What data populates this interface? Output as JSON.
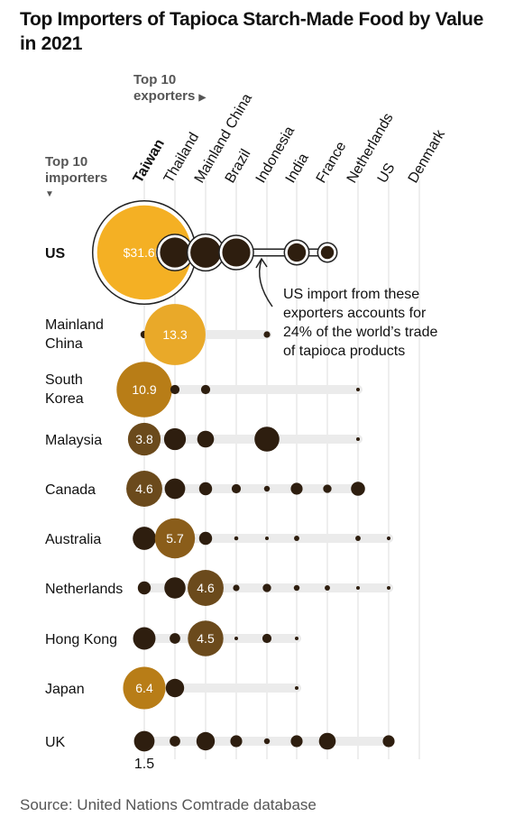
{
  "header": {
    "title": "Top Importers of Tapioca Starch-Made Food by Value in 2021",
    "exporters_line1": "Top 10",
    "exporters_line2": "exporters",
    "importers_line1": "Top 10",
    "importers_line2": "importers"
  },
  "annotation": {
    "lines": [
      "US import from these",
      "exporters accounts for",
      "24% of the world’s trade",
      "of tapioca products"
    ]
  },
  "source": "Source: United Nations Comtrade database",
  "colors": {
    "dark": "#2e1e0f",
    "gold": "#f4b024",
    "light_gold": "#e9a929",
    "bronze": "#b87d17",
    "brown": "#6b4a1c",
    "track": "#ebebeb",
    "grid": "#dcdcdc"
  },
  "chart_data": {
    "type": "bubble-matrix",
    "title": "Top Importers of Tapioca Starch-Made Food by Value in 2021",
    "units": "",
    "exporters": [
      "Taiwan",
      "Thailand",
      "Mainland China",
      "Brazil",
      "Indonesia",
      "India",
      "France",
      "Netherlands",
      "US",
      "Denmark"
    ],
    "importers": [
      {
        "name": "US",
        "sizes": [
          31.6,
          3.2,
          3.3,
          2.8,
          null,
          1.2,
          0.6,
          null,
          null,
          null
        ],
        "labels": {
          "0": "$31.6M"
        },
        "highlight": 0
      },
      {
        "name": "Mainland China",
        "sizes": [
          0.2,
          13.3,
          null,
          null,
          0.15,
          null,
          null,
          null,
          null,
          null
        ],
        "labels": {
          "1": "13.3"
        },
        "highlight": 1
      },
      {
        "name": "South Korea",
        "sizes": [
          10.9,
          0.3,
          0.3,
          null,
          null,
          null,
          null,
          0.03,
          null,
          null
        ],
        "labels": {
          "0": "10.9"
        },
        "highlight": 0
      },
      {
        "name": "Malaysia",
        "sizes": [
          3.8,
          1.7,
          1.0,
          null,
          2.2,
          null,
          null,
          0.04,
          null,
          null
        ],
        "labels": {
          "0": "3.8"
        },
        "highlight": 0
      },
      {
        "name": "Canada",
        "sizes": [
          4.6,
          1.5,
          0.6,
          0.3,
          0.12,
          0.5,
          0.25,
          0.7,
          null,
          null
        ],
        "labels": {
          "0": "4.6"
        },
        "highlight": 0
      },
      {
        "name": "Australia",
        "sizes": [
          1.9,
          5.7,
          0.6,
          0.06,
          0.04,
          0.1,
          null,
          0.1,
          0.05,
          null
        ],
        "labels": {
          "1": "5.7"
        },
        "highlight": 1
      },
      {
        "name": "Netherlands",
        "sizes": [
          0.6,
          1.6,
          4.6,
          0.15,
          0.25,
          0.12,
          0.1,
          0.02,
          0.03,
          null
        ],
        "labels": {
          "2": "4.6"
        },
        "highlight": 2
      },
      {
        "name": "Hong Kong",
        "sizes": [
          1.8,
          0.4,
          4.5,
          0.03,
          0.3,
          0.04,
          null,
          null,
          null,
          null
        ],
        "labels": {
          "2": "4.5"
        },
        "highlight": 2
      },
      {
        "name": "Japan",
        "sizes": [
          6.4,
          1.2,
          null,
          null,
          null,
          0.04,
          null,
          null,
          null,
          null
        ],
        "labels": {
          "0": "6.4"
        },
        "highlight": 0
      },
      {
        "name": "UK",
        "sizes": [
          1.5,
          0.4,
          1.2,
          0.5,
          0.12,
          0.5,
          1.0,
          null,
          0.5,
          null
        ],
        "labels": {},
        "highlight": -1
      }
    ],
    "below_label": {
      "row": 9,
      "col": 0,
      "text": "1.5"
    }
  }
}
